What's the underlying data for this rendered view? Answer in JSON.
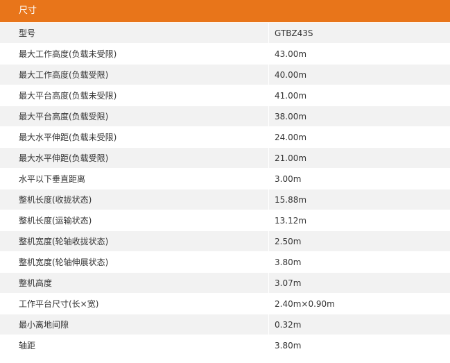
{
  "table": {
    "title": "尺寸",
    "rows": [
      [
        "型号",
        "GTBZ43S"
      ],
      [
        "最大工作高度(负载未受限)",
        "43.00m"
      ],
      [
        "最大工作高度(负载受限)",
        "40.00m"
      ],
      [
        "最大平台高度(负载未受限)",
        "41.00m"
      ],
      [
        "最大平台高度(负载受限)",
        "38.00m"
      ],
      [
        "最大水平伸距(负载未受限)",
        "24.00m"
      ],
      [
        "最大水平伸距(负载受限)",
        "21.00m"
      ],
      [
        "水平以下垂直距离",
        "3.00m"
      ],
      [
        "整机长度(收拢状态)",
        "15.88m"
      ],
      [
        "整机长度(运输状态)",
        "13.12m"
      ],
      [
        "整机宽度(轮轴收拢状态)",
        "2.50m"
      ],
      [
        "整机宽度(轮轴伸展状态)",
        "3.80m"
      ],
      [
        "整机高度",
        "3.07m"
      ],
      [
        "工作平台尺寸(长×宽)",
        "2.40m×0.90m"
      ],
      [
        "最小离地间隙",
        "0.32m"
      ],
      [
        "轴距",
        "3.80m"
      ]
    ]
  }
}
